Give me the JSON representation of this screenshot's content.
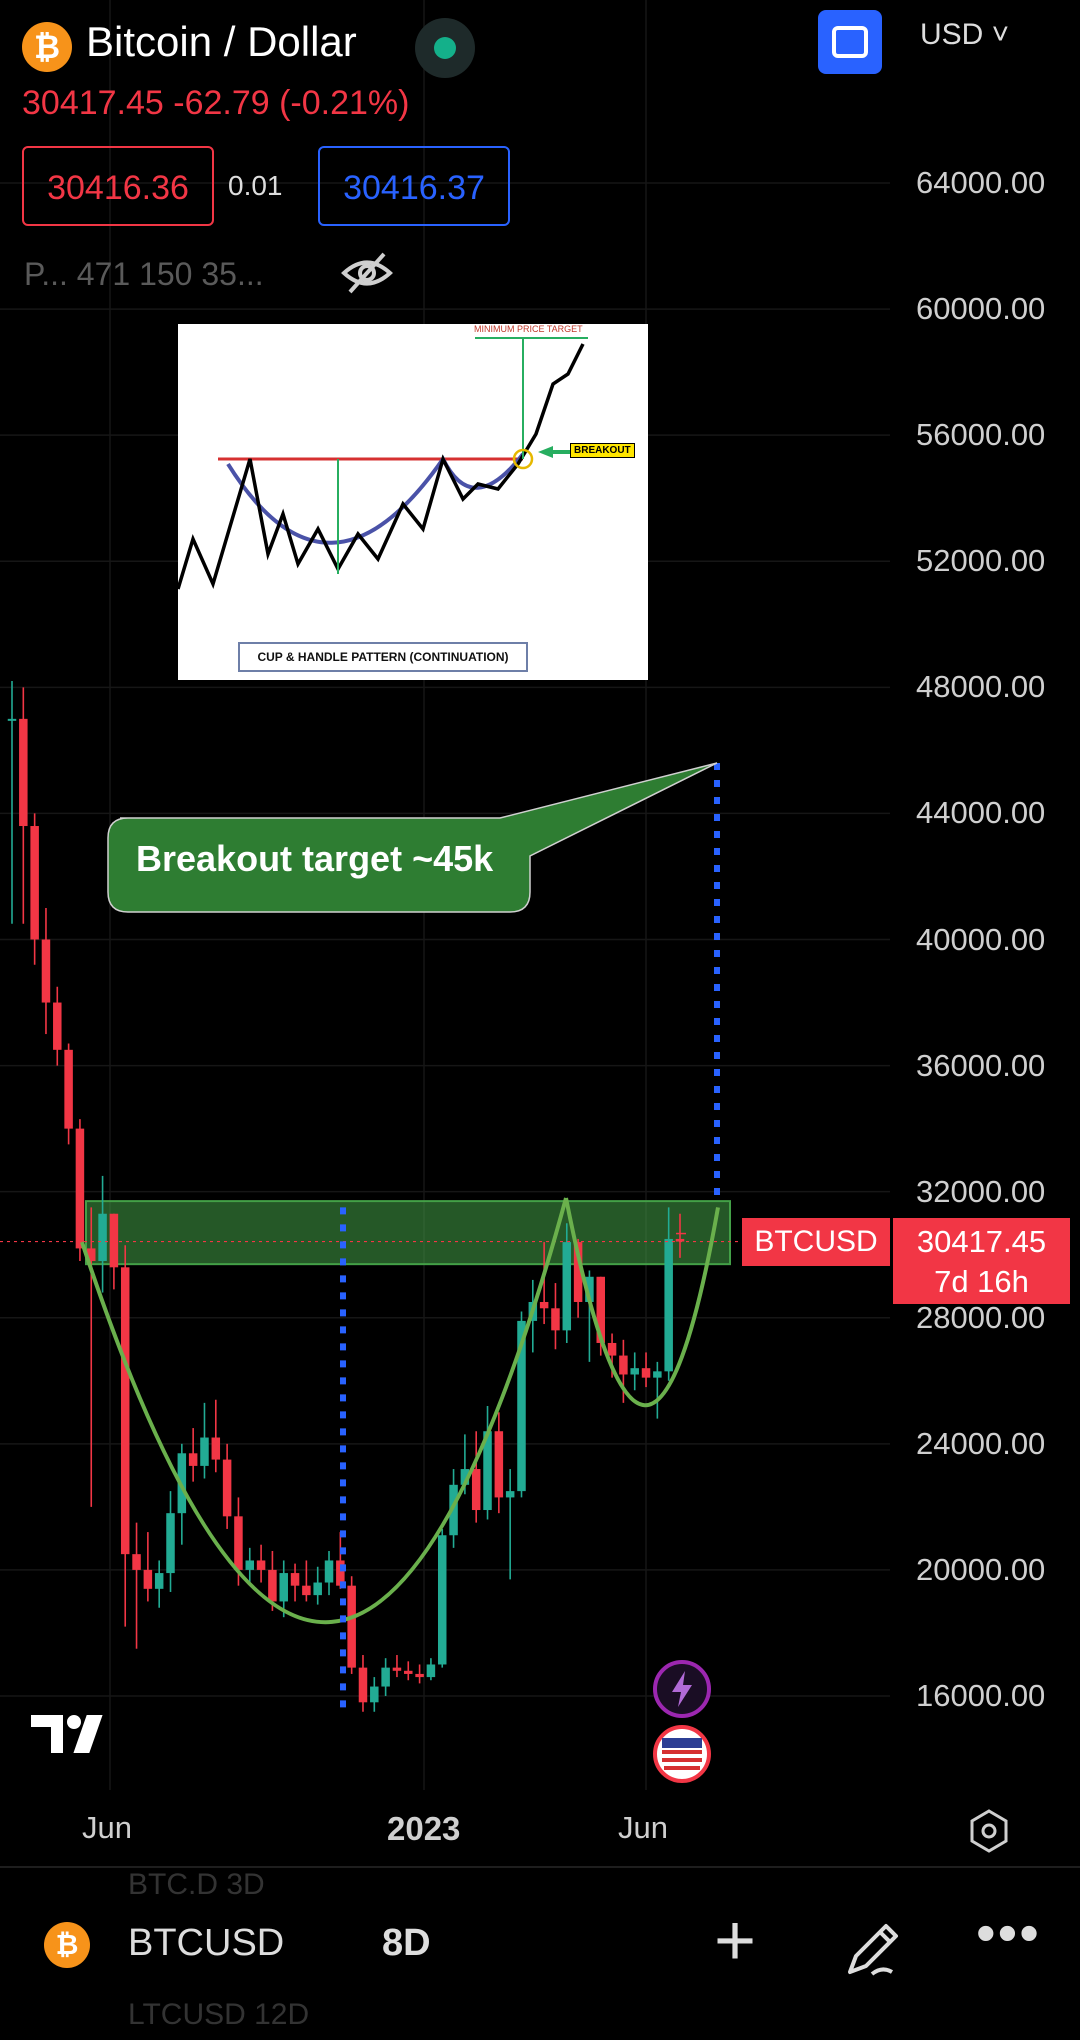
{
  "header": {
    "title": "Bitcoin / Dollar",
    "price_change": "30417.45  -62.79 (-0.21%)",
    "bid": "30416.36",
    "spread": "0.01",
    "ask": "30416.37",
    "info_line": "P... 471 150 35...",
    "currency": "USD",
    "coin_symbol": "₿"
  },
  "chart_data": {
    "type": "candlestick",
    "symbol": "BTCUSD",
    "timeframe": "8D",
    "y_ticks": [
      "64000.00",
      "60000.00",
      "56000.00",
      "52000.00",
      "48000.00",
      "44000.00",
      "40000.00",
      "36000.00",
      "32000.00",
      "28000.00",
      "24000.00",
      "20000.00",
      "16000.00"
    ],
    "ylim": [
      12700,
      66500
    ],
    "x_ticks": [
      {
        "label": "Jun",
        "x": "2022-06"
      },
      {
        "label": "2023",
        "x": "2023-01"
      },
      {
        "label": "Jun",
        "x": "2023-06"
      }
    ],
    "candles": [
      {
        "o": 47000,
        "h": 48200,
        "l": 40500,
        "c": 47000
      },
      {
        "o": 47000,
        "h": 48000,
        "l": 40500,
        "c": 43600
      },
      {
        "o": 43600,
        "h": 44000,
        "l": 39200,
        "c": 40000
      },
      {
        "o": 40000,
        "h": 41000,
        "l": 37000,
        "c": 38000
      },
      {
        "o": 38000,
        "h": 38500,
        "l": 36000,
        "c": 36500
      },
      {
        "o": 36500,
        "h": 36700,
        "l": 33500,
        "c": 34000
      },
      {
        "o": 34000,
        "h": 34300,
        "l": 29800,
        "c": 30200
      },
      {
        "o": 30200,
        "h": 31500,
        "l": 22000,
        "c": 29800
      },
      {
        "o": 29800,
        "h": 32500,
        "l": 28800,
        "c": 31300
      },
      {
        "o": 31300,
        "h": 31300,
        "l": 28900,
        "c": 29600
      },
      {
        "o": 29600,
        "h": 30300,
        "l": 18200,
        "c": 20500
      },
      {
        "o": 20500,
        "h": 21500,
        "l": 17500,
        "c": 20000
      },
      {
        "o": 20000,
        "h": 21200,
        "l": 19000,
        "c": 19400
      },
      {
        "o": 19400,
        "h": 20300,
        "l": 18800,
        "c": 19900
      },
      {
        "o": 19900,
        "h": 22500,
        "l": 19300,
        "c": 21800
      },
      {
        "o": 21800,
        "h": 24000,
        "l": 20800,
        "c": 23700
      },
      {
        "o": 23700,
        "h": 24500,
        "l": 22800,
        "c": 23300
      },
      {
        "o": 23300,
        "h": 25300,
        "l": 22900,
        "c": 24200
      },
      {
        "o": 24200,
        "h": 25400,
        "l": 23100,
        "c": 23500
      },
      {
        "o": 23500,
        "h": 24000,
        "l": 21300,
        "c": 21700
      },
      {
        "o": 21700,
        "h": 22300,
        "l": 19500,
        "c": 20000
      },
      {
        "o": 20000,
        "h": 20700,
        "l": 19500,
        "c": 20300
      },
      {
        "o": 20300,
        "h": 20800,
        "l": 19600,
        "c": 20000
      },
      {
        "o": 20000,
        "h": 20600,
        "l": 18700,
        "c": 19000
      },
      {
        "o": 19000,
        "h": 20300,
        "l": 18500,
        "c": 19900
      },
      {
        "o": 19900,
        "h": 20200,
        "l": 19000,
        "c": 19500
      },
      {
        "o": 19500,
        "h": 20300,
        "l": 19000,
        "c": 19200
      },
      {
        "o": 19200,
        "h": 20100,
        "l": 18900,
        "c": 19600
      },
      {
        "o": 19600,
        "h": 20600,
        "l": 19200,
        "c": 20300
      },
      {
        "o": 20300,
        "h": 21200,
        "l": 19400,
        "c": 19500
      },
      {
        "o": 19500,
        "h": 19800,
        "l": 16700,
        "c": 16900
      },
      {
        "o": 16900,
        "h": 17300,
        "l": 15500,
        "c": 15800
      },
      {
        "o": 15800,
        "h": 16600,
        "l": 15500,
        "c": 16300
      },
      {
        "o": 16300,
        "h": 17200,
        "l": 16000,
        "c": 16900
      },
      {
        "o": 16900,
        "h": 17300,
        "l": 16600,
        "c": 16800
      },
      {
        "o": 16800,
        "h": 17100,
        "l": 16500,
        "c": 16700
      },
      {
        "o": 16700,
        "h": 17000,
        "l": 16400,
        "c": 16600
      },
      {
        "o": 16600,
        "h": 17200,
        "l": 16500,
        "c": 17000
      },
      {
        "o": 17000,
        "h": 21300,
        "l": 16900,
        "c": 21100
      },
      {
        "o": 21100,
        "h": 23200,
        "l": 20700,
        "c": 22700
      },
      {
        "o": 22700,
        "h": 24300,
        "l": 22400,
        "c": 23200
      },
      {
        "o": 23200,
        "h": 24400,
        "l": 21500,
        "c": 21900
      },
      {
        "o": 21900,
        "h": 25200,
        "l": 21600,
        "c": 24400
      },
      {
        "o": 24400,
        "h": 25000,
        "l": 21800,
        "c": 22300
      },
      {
        "o": 22300,
        "h": 23200,
        "l": 19700,
        "c": 22500
      },
      {
        "o": 22500,
        "h": 28200,
        "l": 22300,
        "c": 27900
      },
      {
        "o": 27900,
        "h": 29200,
        "l": 26900,
        "c": 28500
      },
      {
        "o": 28500,
        "h": 30400,
        "l": 27800,
        "c": 28300
      },
      {
        "o": 28300,
        "h": 29100,
        "l": 27000,
        "c": 27600
      },
      {
        "o": 27600,
        "h": 31000,
        "l": 27200,
        "c": 30400
      },
      {
        "o": 30400,
        "h": 30500,
        "l": 28000,
        "c": 28500
      },
      {
        "o": 28500,
        "h": 29500,
        "l": 26600,
        "c": 29300
      },
      {
        "o": 29300,
        "h": 29300,
        "l": 26800,
        "c": 27200
      },
      {
        "o": 27200,
        "h": 27500,
        "l": 26100,
        "c": 26800
      },
      {
        "o": 26800,
        "h": 27300,
        "l": 25300,
        "c": 26200
      },
      {
        "o": 26200,
        "h": 26900,
        "l": 25700,
        "c": 26400
      },
      {
        "o": 26400,
        "h": 26900,
        "l": 25800,
        "c": 26100
      },
      {
        "o": 26100,
        "h": 26600,
        "l": 24800,
        "c": 26300
      },
      {
        "o": 26300,
        "h": 31500,
        "l": 26000,
        "c": 30500
      },
      {
        "o": 30500,
        "h": 31300,
        "l": 29900,
        "c": 30417
      }
    ],
    "last_price": "30417.45",
    "countdown": "7d 16h",
    "symbol_label": "BTCUSD",
    "resistance_zone": [
      29700,
      31700
    ],
    "target_price": 45600,
    "callout_text": "Breakout target ~45k",
    "inset": {
      "caption": "CUP & HANDLE PATTERN (CONTINUATION)",
      "target_label": "MINIMUM PRICE TARGET",
      "breakout_label": "BREAKOUT"
    }
  },
  "bottom_bar": {
    "symbol": "BTCUSD",
    "timeframe": "8D",
    "ghost_above": "BTC.D 3D",
    "ghost_below": "LTCUSD 12D"
  },
  "colors": {
    "up": "#22ab94",
    "down": "#f23645",
    "curve": "#6ab04c",
    "zone": "rgba(67,160,71,0.55)",
    "target_line": "#2962ff",
    "callout_bg": "#2e7d32"
  }
}
